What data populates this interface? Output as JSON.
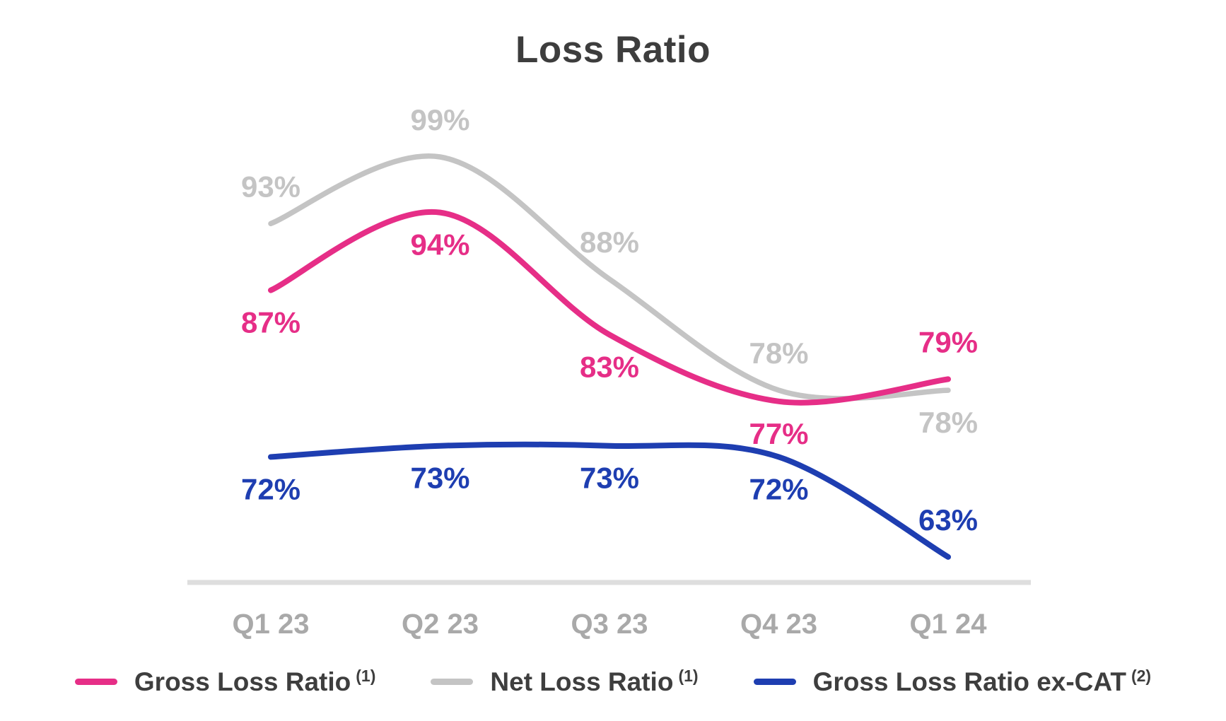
{
  "title": "Loss Ratio",
  "colors": {
    "pink": "#E62E87",
    "gray": "#C4C4C4",
    "blue": "#1E3EB1",
    "axis_line": "#DEDEDE",
    "tick_label": "#A9A9A9",
    "title_text": "#3D3D3D",
    "legend_text": "#3E3E3E"
  },
  "chart_data": {
    "type": "line",
    "title": "Loss Ratio",
    "categories": [
      "Q1 23",
      "Q2 23",
      "Q3 23",
      "Q4 23",
      "Q1 24"
    ],
    "unit": "%",
    "curve": "smooth",
    "grid": false,
    "legend_position": "bottom",
    "ylim": [
      60,
      104
    ],
    "series": [
      {
        "name": "Gross Loss Ratio",
        "footnote": "(1)",
        "color": "#E62E87",
        "values": [
          87,
          94,
          83,
          77,
          79
        ],
        "labels": [
          "87%",
          "94%",
          "83%",
          "77%",
          "79%"
        ],
        "label_side": [
          "below",
          "below",
          "below",
          "below",
          "above"
        ]
      },
      {
        "name": "Net Loss Ratio",
        "footnote": "(1)",
        "color": "#C4C4C4",
        "values": [
          93,
          99,
          88,
          78,
          78
        ],
        "labels": [
          "93%",
          "99%",
          "88%",
          "78%",
          "78%"
        ],
        "label_side": [
          "above",
          "above",
          "above",
          "above",
          "below"
        ]
      },
      {
        "name": "Gross Loss Ratio ex-CAT",
        "footnote": "(2)",
        "color": "#1E3EB1",
        "values": [
          72,
          73,
          73,
          72,
          63
        ],
        "labels": [
          "72%",
          "73%",
          "73%",
          "72%",
          "63%"
        ],
        "label_side": [
          "below",
          "below",
          "below",
          "below",
          "above"
        ]
      }
    ]
  }
}
